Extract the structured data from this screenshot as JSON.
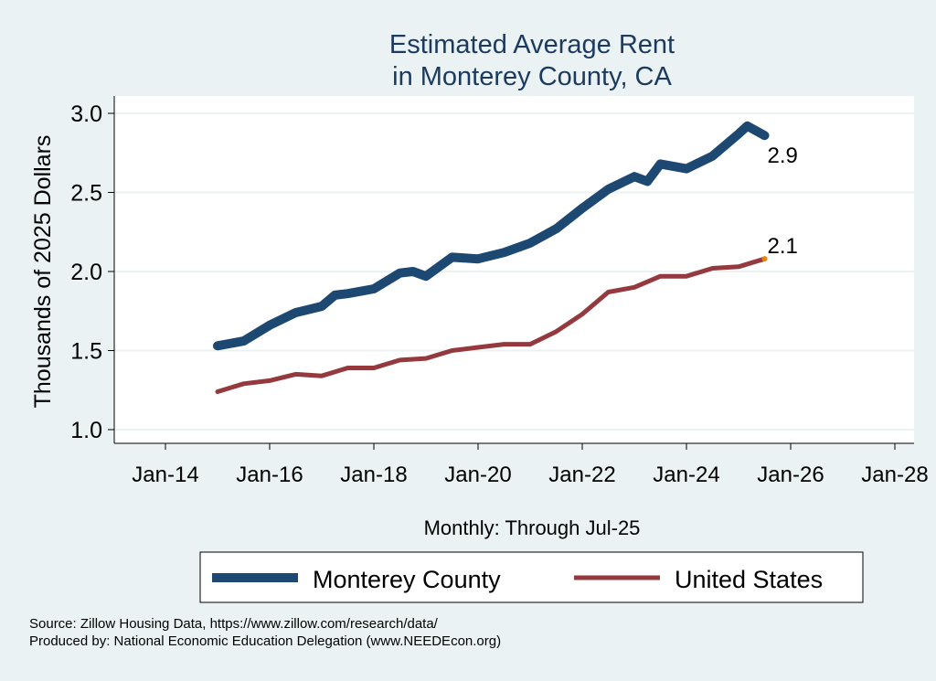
{
  "chart_data": {
    "type": "line",
    "title": [
      "Estimated Average Rent",
      "in Monterey County, CA"
    ],
    "xlabel": "Monthly: Through Jul-25",
    "ylabel": "Thousands of 2025 Dollars",
    "ylim": [
      0.9,
      3.1
    ],
    "yticks": [
      1.0,
      1.5,
      2.0,
      2.5,
      3.0
    ],
    "ytick_labels": [
      "1.0",
      "1.5",
      "2.0",
      "2.5",
      "3.0"
    ],
    "xticks": [
      "2014-01",
      "2016-01",
      "2018-01",
      "2020-01",
      "2022-01",
      "2024-01",
      "2026-01",
      "2028-01"
    ],
    "xtick_labels": [
      "Jan-14",
      "Jan-16",
      "Jan-18",
      "Jan-20",
      "Jan-22",
      "Jan-24",
      "Jan-26",
      "Jan-28"
    ],
    "grid": true,
    "legend_position": "bottom",
    "series": [
      {
        "name": "Monterey County",
        "color": "#1c4872",
        "end_label": "2.9",
        "x": [
          "2015-01",
          "2015-07",
          "2016-01",
          "2016-07",
          "2017-01",
          "2017-04",
          "2017-07",
          "2018-01",
          "2018-07",
          "2018-10",
          "2019-01",
          "2019-07",
          "2020-01",
          "2020-07",
          "2021-01",
          "2021-07",
          "2022-01",
          "2022-07",
          "2023-01",
          "2023-04",
          "2023-07",
          "2024-01",
          "2024-07",
          "2025-01",
          "2025-03",
          "2025-07"
        ],
        "values": [
          1.53,
          1.56,
          1.66,
          1.74,
          1.78,
          1.85,
          1.86,
          1.89,
          1.99,
          2.0,
          1.97,
          2.09,
          2.08,
          2.12,
          2.18,
          2.27,
          2.4,
          2.52,
          2.6,
          2.57,
          2.68,
          2.65,
          2.73,
          2.87,
          2.92,
          2.86
        ]
      },
      {
        "name": "United States",
        "color": "#943a3f",
        "end_label": "2.1",
        "end_marker_color": "#e8820c",
        "x": [
          "2015-01",
          "2015-07",
          "2016-01",
          "2016-07",
          "2017-01",
          "2017-07",
          "2018-01",
          "2018-07",
          "2019-01",
          "2019-07",
          "2020-01",
          "2020-07",
          "2021-01",
          "2021-07",
          "2022-01",
          "2022-07",
          "2023-01",
          "2023-07",
          "2024-01",
          "2024-07",
          "2025-01",
          "2025-07"
        ],
        "values": [
          1.24,
          1.29,
          1.31,
          1.35,
          1.34,
          1.39,
          1.39,
          1.44,
          1.45,
          1.5,
          1.52,
          1.54,
          1.54,
          1.62,
          1.73,
          1.87,
          1.9,
          1.97,
          1.97,
          2.02,
          2.03,
          2.08
        ]
      }
    ]
  },
  "footer": {
    "source": "Source: Zillow Housing Data, https://www.zillow.com/research/data/",
    "producer": "Produced by: National Economic Education Delegation (www.NEEDEcon.org)"
  }
}
